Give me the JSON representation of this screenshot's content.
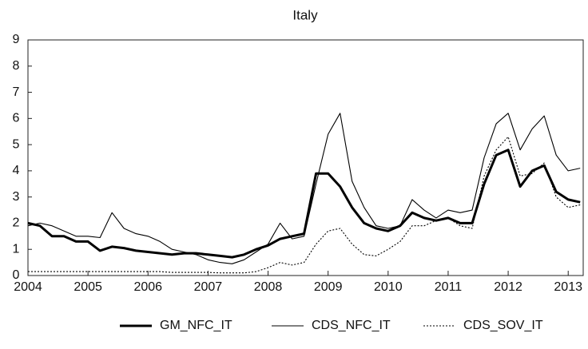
{
  "chart_data": {
    "type": "line",
    "title": "Italy",
    "x": [
      2004.0,
      2004.2,
      2004.4,
      2004.6,
      2004.8,
      2005.0,
      2005.2,
      2005.4,
      2005.6,
      2005.8,
      2006.0,
      2006.2,
      2006.4,
      2006.6,
      2006.8,
      2007.0,
      2007.2,
      2007.4,
      2007.6,
      2007.8,
      2008.0,
      2008.2,
      2008.4,
      2008.6,
      2008.8,
      2009.0,
      2009.2,
      2009.4,
      2009.6,
      2009.8,
      2010.0,
      2010.2,
      2010.4,
      2010.6,
      2010.8,
      2011.0,
      2011.2,
      2011.4,
      2011.6,
      2011.8,
      2012.0,
      2012.2,
      2012.4,
      2012.6,
      2012.8,
      2013.0,
      2013.2
    ],
    "series": [
      {
        "name": "GM_NFC_IT",
        "color": "#000000",
        "style": "thick",
        "values": [
          2.0,
          1.9,
          1.5,
          1.5,
          1.3,
          1.3,
          0.95,
          1.1,
          1.05,
          0.95,
          0.9,
          0.85,
          0.8,
          0.85,
          0.85,
          0.8,
          0.75,
          0.7,
          0.8,
          1.0,
          1.15,
          1.4,
          1.5,
          1.6,
          3.9,
          3.9,
          3.4,
          2.6,
          2.0,
          1.8,
          1.7,
          1.9,
          2.4,
          2.2,
          2.1,
          2.2,
          2.0,
          2.0,
          3.5,
          4.6,
          4.8,
          3.4,
          4.0,
          4.2,
          3.2,
          2.9,
          2.8
        ]
      },
      {
        "name": "CDS_NFC_IT",
        "color": "#000000",
        "style": "thin",
        "values": [
          1.9,
          2.0,
          1.9,
          1.7,
          1.5,
          1.5,
          1.45,
          2.4,
          1.8,
          1.6,
          1.5,
          1.3,
          1.0,
          0.9,
          0.8,
          0.6,
          0.5,
          0.45,
          0.6,
          0.9,
          1.2,
          2.0,
          1.4,
          1.5,
          3.5,
          5.4,
          6.2,
          3.6,
          2.6,
          1.9,
          1.8,
          1.9,
          2.9,
          2.5,
          2.2,
          2.5,
          2.4,
          2.5,
          4.5,
          5.8,
          6.2,
          4.8,
          5.6,
          6.1,
          4.6,
          4.0,
          4.1
        ]
      },
      {
        "name": "CDS_SOV_IT",
        "color": "#000000",
        "style": "dotted",
        "values": [
          0.15,
          0.15,
          0.15,
          0.15,
          0.15,
          0.15,
          0.15,
          0.15,
          0.15,
          0.15,
          0.15,
          0.15,
          0.12,
          0.12,
          0.12,
          0.12,
          0.1,
          0.1,
          0.1,
          0.15,
          0.3,
          0.5,
          0.4,
          0.5,
          1.2,
          1.7,
          1.8,
          1.2,
          0.8,
          0.75,
          1.0,
          1.3,
          1.9,
          1.9,
          2.1,
          2.2,
          1.9,
          1.8,
          3.8,
          4.8,
          5.3,
          3.8,
          3.9,
          4.3,
          3.0,
          2.6,
          2.7
        ]
      }
    ],
    "xlim": [
      2004,
      2013.25
    ],
    "xticks": [
      2004,
      2005,
      2006,
      2007,
      2008,
      2009,
      2010,
      2011,
      2012,
      2013
    ],
    "ylim": [
      0,
      9
    ],
    "yticks": [
      0,
      1,
      2,
      3,
      4,
      5,
      6,
      7,
      8,
      9
    ],
    "legend": "bottom"
  }
}
